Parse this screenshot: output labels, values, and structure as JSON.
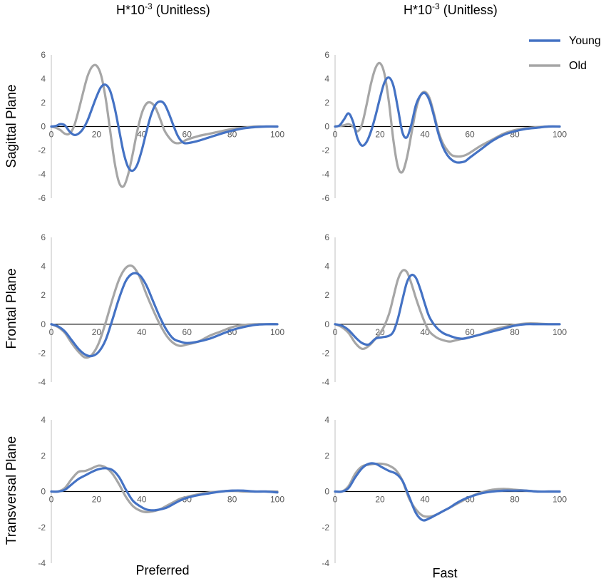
{
  "headers": {
    "left": {
      "base": "H*10",
      "exp": "-3",
      "tail": " (Unitless)"
    },
    "right": {
      "base": "H*10",
      "exp": "-3",
      "tail": " (Unitless)"
    }
  },
  "row_labels": [
    "Sagittal Plane",
    "Frontal Plane",
    "Transversal  Plane"
  ],
  "col_labels": [
    "Preferred",
    "Fast"
  ],
  "legend": {
    "young": "Young",
    "old": "Old"
  },
  "colors": {
    "young": "#4472C4",
    "old": "#A6A6A6",
    "axis": "#000000",
    "tick": "#595959"
  },
  "chart_data": [
    {
      "type": "line",
      "row": "Sagittal Plane",
      "col": "Preferred",
      "xlim": [
        0,
        100
      ],
      "ylim": [
        -6,
        6
      ],
      "yticks": [
        6,
        4,
        2,
        0,
        -2,
        -4,
        -6
      ],
      "xticks": [
        0,
        20,
        40,
        60,
        80,
        100
      ],
      "series": [
        {
          "name": "Young",
          "x": [
            0,
            2,
            4,
            6,
            8,
            10,
            12,
            14,
            16,
            18,
            20,
            22,
            24,
            26,
            28,
            30,
            32,
            34,
            36,
            38,
            40,
            42,
            44,
            46,
            48,
            50,
            52,
            54,
            56,
            58,
            60,
            65,
            70,
            75,
            80,
            85,
            90,
            95,
            100
          ],
          "y": [
            0,
            0.05,
            0.2,
            0.1,
            -0.4,
            -0.7,
            -0.6,
            -0.2,
            0.5,
            1.5,
            2.5,
            3.3,
            3.5,
            3.0,
            1.6,
            -0.3,
            -2.2,
            -3.4,
            -3.7,
            -3.2,
            -2.0,
            -0.5,
            0.9,
            1.8,
            2.1,
            1.9,
            1.1,
            0.1,
            -0.8,
            -1.3,
            -1.4,
            -1.2,
            -0.9,
            -0.6,
            -0.35,
            -0.15,
            -0.05,
            0,
            0
          ]
        },
        {
          "name": "Old",
          "x": [
            0,
            2,
            4,
            6,
            8,
            10,
            12,
            14,
            16,
            18,
            20,
            22,
            24,
            26,
            28,
            30,
            32,
            34,
            36,
            38,
            40,
            42,
            44,
            46,
            48,
            50,
            52,
            54,
            56,
            58,
            60,
            65,
            70,
            75,
            80,
            85,
            90,
            95,
            100
          ],
          "y": [
            0,
            -0.1,
            -0.3,
            -0.6,
            -0.6,
            0,
            1.3,
            2.8,
            4.2,
            5.0,
            5.1,
            4.3,
            2.4,
            -0.3,
            -3.0,
            -4.7,
            -5.0,
            -4.0,
            -2.3,
            -0.4,
            1.1,
            1.9,
            2.0,
            1.6,
            0.7,
            -0.3,
            -0.9,
            -1.3,
            -1.4,
            -1.3,
            -1.1,
            -0.8,
            -0.6,
            -0.4,
            -0.2,
            -0.1,
            0,
            0,
            0
          ]
        }
      ]
    },
    {
      "type": "line",
      "row": "Sagittal Plane",
      "col": "Fast",
      "xlim": [
        0,
        100
      ],
      "ylim": [
        -6,
        6
      ],
      "yticks": [
        6,
        4,
        2,
        0,
        -2,
        -4,
        -6
      ],
      "xticks": [
        0,
        20,
        40,
        60,
        80,
        100
      ],
      "series": [
        {
          "name": "Young",
          "x": [
            0,
            2,
            4,
            6,
            8,
            10,
            12,
            14,
            16,
            18,
            20,
            22,
            24,
            26,
            28,
            30,
            32,
            34,
            36,
            38,
            40,
            42,
            44,
            46,
            48,
            50,
            52,
            54,
            56,
            58,
            60,
            65,
            70,
            75,
            80,
            85,
            90,
            95,
            100
          ],
          "y": [
            0,
            0.1,
            0.6,
            1.1,
            0.4,
            -1.0,
            -1.6,
            -1.3,
            -0.4,
            0.9,
            2.4,
            3.7,
            4.1,
            3.4,
            1.5,
            -0.5,
            -0.9,
            0.2,
            1.8,
            2.6,
            2.8,
            2.2,
            0.9,
            -0.6,
            -1.7,
            -2.4,
            -2.8,
            -3.0,
            -3.0,
            -2.9,
            -2.6,
            -1.9,
            -1.2,
            -0.7,
            -0.4,
            -0.2,
            -0.1,
            0,
            0
          ]
        },
        {
          "name": "Old",
          "x": [
            0,
            2,
            4,
            6,
            8,
            10,
            12,
            14,
            16,
            18,
            20,
            22,
            24,
            26,
            28,
            30,
            32,
            34,
            36,
            38,
            40,
            42,
            44,
            46,
            48,
            50,
            52,
            54,
            56,
            58,
            60,
            65,
            70,
            75,
            80,
            85,
            90,
            95,
            100
          ],
          "y": [
            0,
            0.05,
            0.1,
            0.2,
            0.0,
            -0.4,
            0.2,
            1.8,
            3.6,
            4.9,
            5.3,
            4.4,
            2.0,
            -1.2,
            -3.4,
            -3.8,
            -2.6,
            -0.6,
            1.4,
            2.6,
            2.9,
            2.4,
            1.1,
            -0.4,
            -1.4,
            -2.0,
            -2.4,
            -2.5,
            -2.5,
            -2.4,
            -2.2,
            -1.6,
            -1.1,
            -0.6,
            -0.3,
            -0.15,
            -0.05,
            0,
            0
          ]
        }
      ]
    },
    {
      "type": "line",
      "row": "Frontal Plane",
      "col": "Preferred",
      "xlim": [
        0,
        100
      ],
      "ylim": [
        -4,
        6
      ],
      "yticks": [
        6,
        4,
        2,
        0,
        -2,
        -4
      ],
      "xticks": [
        0,
        20,
        40,
        60,
        80,
        100
      ],
      "series": [
        {
          "name": "Young",
          "x": [
            0,
            3,
            6,
            9,
            12,
            15,
            18,
            21,
            24,
            27,
            30,
            33,
            36,
            39,
            42,
            45,
            48,
            51,
            54,
            57,
            60,
            65,
            70,
            75,
            80,
            85,
            90,
            95,
            100
          ],
          "y": [
            0,
            -0.15,
            -0.5,
            -1.1,
            -1.7,
            -2.1,
            -2.2,
            -1.9,
            -1.1,
            0.3,
            1.8,
            3.0,
            3.5,
            3.4,
            2.7,
            1.6,
            0.5,
            -0.4,
            -1.0,
            -1.2,
            -1.3,
            -1.2,
            -1.0,
            -0.7,
            -0.4,
            -0.2,
            -0.05,
            0,
            0
          ]
        },
        {
          "name": "Old",
          "x": [
            0,
            3,
            6,
            9,
            12,
            15,
            18,
            21,
            24,
            27,
            30,
            33,
            36,
            39,
            42,
            45,
            48,
            51,
            54,
            57,
            60,
            65,
            70,
            75,
            80,
            85,
            90,
            95,
            100
          ],
          "y": [
            0,
            -0.2,
            -0.6,
            -1.3,
            -1.9,
            -2.3,
            -2.1,
            -1.3,
            0.1,
            1.7,
            3.1,
            3.9,
            4.0,
            3.3,
            2.1,
            1.0,
            0.0,
            -0.8,
            -1.3,
            -1.5,
            -1.4,
            -1.2,
            -0.8,
            -0.5,
            -0.2,
            -0.05,
            0,
            0,
            0
          ]
        }
      ]
    },
    {
      "type": "line",
      "row": "Frontal Plane",
      "col": "Fast",
      "xlim": [
        0,
        100
      ],
      "ylim": [
        -4,
        6
      ],
      "yticks": [
        6,
        4,
        2,
        0,
        -2,
        -4
      ],
      "xticks": [
        0,
        20,
        40,
        60,
        80,
        100
      ],
      "series": [
        {
          "name": "Young",
          "x": [
            0,
            3,
            6,
            9,
            12,
            15,
            18,
            21,
            24,
            26,
            28,
            30,
            32,
            34,
            36,
            38,
            40,
            42,
            45,
            48,
            51,
            54,
            57,
            60,
            65,
            70,
            75,
            80,
            85,
            90,
            95,
            100
          ],
          "y": [
            0,
            -0.1,
            -0.4,
            -0.9,
            -1.3,
            -1.4,
            -1.0,
            -0.9,
            -0.8,
            -0.5,
            0.4,
            1.7,
            2.9,
            3.4,
            3.2,
            2.4,
            1.4,
            0.5,
            -0.2,
            -0.6,
            -0.8,
            -0.95,
            -1.0,
            -0.9,
            -0.7,
            -0.5,
            -0.3,
            -0.1,
            0,
            0,
            0,
            0
          ]
        },
        {
          "name": "Old",
          "x": [
            0,
            3,
            6,
            9,
            12,
            15,
            18,
            21,
            24,
            26,
            28,
            30,
            32,
            34,
            36,
            38,
            40,
            42,
            45,
            48,
            51,
            54,
            57,
            60,
            65,
            70,
            75,
            80,
            85,
            90,
            95,
            100
          ],
          "y": [
            0,
            -0.2,
            -0.6,
            -1.3,
            -1.7,
            -1.5,
            -1.0,
            -0.4,
            0.7,
            1.9,
            3.1,
            3.7,
            3.6,
            2.8,
            1.8,
            0.9,
            0.1,
            -0.5,
            -0.9,
            -1.1,
            -1.2,
            -1.1,
            -1.0,
            -0.9,
            -0.7,
            -0.4,
            -0.2,
            -0.05,
            0.05,
            0.05,
            0,
            0
          ]
        }
      ]
    },
    {
      "type": "line",
      "row": "Transversal  Plane",
      "col": "Preferred",
      "xlim": [
        0,
        100
      ],
      "ylim": [
        -4,
        4
      ],
      "yticks": [
        4,
        2,
        0,
        -2,
        -4
      ],
      "xticks": [
        0,
        20,
        40,
        60,
        80,
        100
      ],
      "series": [
        {
          "name": "Young",
          "x": [
            0,
            3,
            6,
            9,
            12,
            15,
            18,
            21,
            24,
            27,
            30,
            33,
            36,
            39,
            42,
            45,
            48,
            51,
            54,
            57,
            60,
            65,
            70,
            75,
            80,
            85,
            90,
            95,
            100
          ],
          "y": [
            0,
            0,
            0.1,
            0.4,
            0.7,
            0.9,
            1.1,
            1.25,
            1.3,
            1.2,
            0.8,
            0.1,
            -0.5,
            -0.8,
            -1.0,
            -1.05,
            -1.0,
            -0.9,
            -0.7,
            -0.5,
            -0.35,
            -0.2,
            -0.1,
            0,
            0.05,
            0.05,
            0,
            0,
            -0.05
          ]
        },
        {
          "name": "Old",
          "x": [
            0,
            3,
            6,
            9,
            12,
            15,
            18,
            21,
            24,
            27,
            30,
            33,
            36,
            39,
            42,
            45,
            48,
            51,
            54,
            57,
            60,
            65,
            70,
            75,
            80,
            85,
            90,
            95,
            100
          ],
          "y": [
            0,
            0,
            0.2,
            0.7,
            1.1,
            1.15,
            1.3,
            1.45,
            1.35,
            1.0,
            0.4,
            -0.3,
            -0.8,
            -1.05,
            -1.15,
            -1.1,
            -1.0,
            -0.8,
            -0.6,
            -0.4,
            -0.3,
            -0.15,
            -0.05,
            0,
            0.05,
            0,
            0,
            0,
            0
          ]
        }
      ]
    },
    {
      "type": "line",
      "row": "Transversal  Plane",
      "col": "Fast",
      "xlim": [
        0,
        100
      ],
      "ylim": [
        -4,
        4
      ],
      "yticks": [
        4,
        2,
        0,
        -2,
        -4
      ],
      "xticks": [
        0,
        20,
        40,
        60,
        80,
        100
      ],
      "series": [
        {
          "name": "Young",
          "x": [
            0,
            3,
            6,
            9,
            12,
            15,
            18,
            21,
            24,
            27,
            30,
            33,
            36,
            39,
            42,
            45,
            48,
            51,
            54,
            57,
            60,
            65,
            70,
            75,
            80,
            85,
            90,
            95,
            100
          ],
          "y": [
            0,
            0,
            0.2,
            0.8,
            1.3,
            1.55,
            1.55,
            1.35,
            1.15,
            1.0,
            0.6,
            -0.3,
            -1.2,
            -1.6,
            -1.5,
            -1.3,
            -1.1,
            -0.9,
            -0.65,
            -0.45,
            -0.3,
            -0.1,
            0,
            0.05,
            0.05,
            0.05,
            0,
            0,
            0
          ]
        },
        {
          "name": "Old",
          "x": [
            0,
            3,
            6,
            9,
            12,
            15,
            18,
            21,
            24,
            27,
            30,
            33,
            36,
            39,
            42,
            45,
            48,
            51,
            54,
            57,
            60,
            65,
            70,
            75,
            80,
            85,
            90,
            95,
            100
          ],
          "y": [
            0,
            0,
            0.3,
            1.0,
            1.4,
            1.5,
            1.55,
            1.55,
            1.45,
            1.2,
            0.6,
            -0.4,
            -1.0,
            -1.35,
            -1.4,
            -1.3,
            -1.1,
            -0.9,
            -0.7,
            -0.5,
            -0.3,
            -0.05,
            0.1,
            0.15,
            0.1,
            0.05,
            0,
            0,
            0
          ]
        }
      ]
    }
  ]
}
